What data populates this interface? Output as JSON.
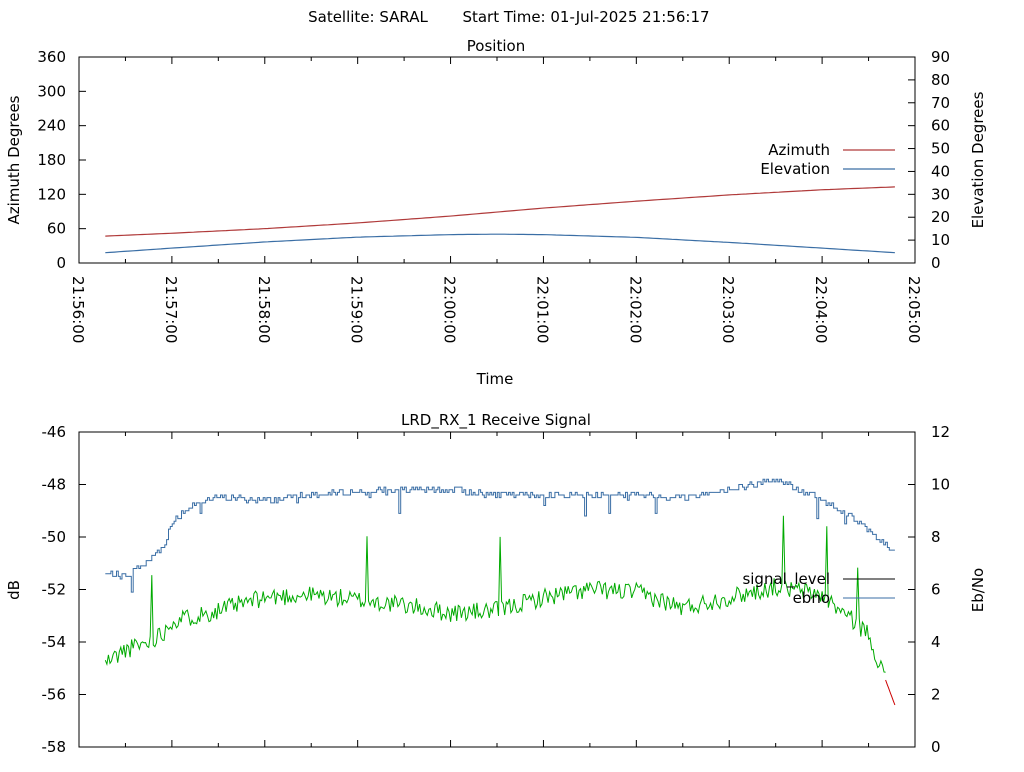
{
  "header": {
    "satellite_label": "Satellite: SARAL",
    "start_time_label": "Start Time: 01-Jul-2025 21:56:17"
  },
  "chart_data": [
    {
      "type": "line",
      "title": "Position",
      "xlabel": "Time",
      "ylabel_left": "Azimuth Degrees",
      "ylabel_right": "Elevation Degrees",
      "xlim": [
        "21:56:00",
        "22:05:00"
      ],
      "x_ticks": [
        "21:56:00",
        "21:57:00",
        "21:58:00",
        "21:59:00",
        "22:00:00",
        "22:01:00",
        "22:02:00",
        "22:03:00",
        "22:04:00",
        "22:05:00"
      ],
      "ylim_left": [
        0,
        360
      ],
      "ylim_right": [
        0,
        90
      ],
      "y_ticks_left": [
        "0",
        "60",
        "120",
        "180",
        "240",
        "300",
        "360"
      ],
      "y_ticks_right": [
        "0",
        "10",
        "20",
        "30",
        "40",
        "50",
        "60",
        "70",
        "80",
        "90"
      ],
      "legend_position": "right",
      "series": [
        {
          "name": "Azimuth",
          "axis": "left",
          "color": "#b03a3a",
          "x": [
            "21:56:17",
            "21:57:00",
            "21:58:00",
            "21:59:00",
            "22:00:00",
            "22:01:00",
            "22:02:00",
            "22:03:00",
            "22:04:00",
            "22:04:47"
          ],
          "y": [
            47,
            52,
            60,
            70,
            82,
            96,
            108,
            119,
            128,
            133
          ]
        },
        {
          "name": "Elevation",
          "axis": "right",
          "color": "#3a6ea5",
          "x": [
            "21:56:17",
            "21:57:00",
            "21:58:00",
            "21:59:00",
            "22:00:00",
            "22:00:30",
            "22:01:00",
            "22:02:00",
            "22:03:00",
            "22:04:00",
            "22:04:47"
          ],
          "y": [
            4.5,
            6.5,
            9.2,
            11.3,
            12.4,
            12.6,
            12.4,
            11.2,
            9.0,
            6.5,
            4.5
          ]
        }
      ]
    },
    {
      "type": "line",
      "title": "LRD_RX_1 Receive Signal",
      "xlabel": "",
      "ylabel_left": "dB",
      "ylabel_right": "Eb/No",
      "xlim": [
        "21:56:00",
        "22:05:00"
      ],
      "ylim_left": [
        -58,
        -46
      ],
      "ylim_right": [
        0,
        12
      ],
      "y_ticks_left": [
        "-46",
        "-48",
        "-50",
        "-52",
        "-54",
        "-56",
        "-58"
      ],
      "y_ticks_right": [
        "0",
        "2",
        "4",
        "6",
        "8",
        "10",
        "12"
      ],
      "legend_position": "right",
      "legend_entries": [
        {
          "name": "signal_level",
          "color": "#000000"
        },
        {
          "name": "ebno",
          "color": "#3a6ea5"
        }
      ],
      "series": [
        {
          "name": "signal_level",
          "axis": "left",
          "color": "#00aa00",
          "tail_color": "#cc0000",
          "x": [
            "21:56:17",
            "21:56:30",
            "21:56:45",
            "21:56:55",
            "21:57:00",
            "21:57:30",
            "21:58:00",
            "21:58:30",
            "21:59:00",
            "21:59:30",
            "22:00:00",
            "22:00:30",
            "22:01:00",
            "22:01:30",
            "22:02:00",
            "22:02:30",
            "22:03:00",
            "22:03:30",
            "22:04:00",
            "22:04:30",
            "22:04:47"
          ],
          "y": [
            -54.8,
            -54.3,
            -54.0,
            -53.6,
            -53.2,
            -52.8,
            -52.3,
            -52.2,
            -52.4,
            -52.6,
            -52.9,
            -52.8,
            -52.3,
            -52.0,
            -52.1,
            -52.7,
            -52.3,
            -51.9,
            -52.2,
            -53.7,
            -56.4
          ]
        },
        {
          "name": "ebno",
          "axis": "right",
          "color": "#3a6ea5",
          "x": [
            "21:56:17",
            "21:56:30",
            "21:56:45",
            "21:56:55",
            "21:57:00",
            "21:57:15",
            "21:57:30",
            "21:58:00",
            "21:58:30",
            "21:59:00",
            "21:59:30",
            "22:00:00",
            "22:00:30",
            "22:01:00",
            "22:01:30",
            "22:02:00",
            "22:02:30",
            "22:03:00",
            "22:03:30",
            "22:04:00",
            "22:04:15",
            "22:04:30",
            "22:04:47"
          ],
          "y": [
            6.6,
            6.5,
            7.1,
            7.7,
            8.6,
            9.3,
            9.5,
            9.4,
            9.6,
            9.7,
            9.8,
            9.8,
            9.6,
            9.6,
            9.6,
            9.6,
            9.5,
            9.8,
            10.2,
            9.4,
            8.9,
            8.2,
            7.4
          ]
        }
      ]
    }
  ]
}
